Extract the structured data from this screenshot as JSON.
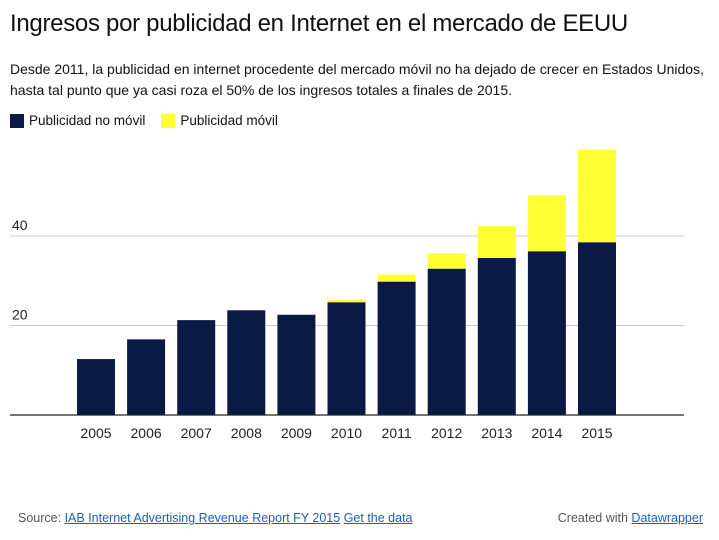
{
  "title": "Ingresos por publicidad en Internet en el mercado de EEUU",
  "subtitle": "Desde 2011, la publicidad en internet procedente del mercado móvil no ha dejado de crecer en Estados Unidos, hasta tal punto que ya casi roza el 50% de los ingresos totales a finales de 2015.",
  "colors": {
    "non_mobile": "#0b1a45",
    "mobile": "#ffff33",
    "grid": "#cccccc",
    "axis": "#222222"
  },
  "chart_data": {
    "type": "bar",
    "stacked": true,
    "categories": [
      "2005",
      "2006",
      "2007",
      "2008",
      "2009",
      "2010",
      "2011",
      "2012",
      "2013",
      "2014",
      "2015"
    ],
    "series": [
      {
        "name": "Publicidad no móvil",
        "values": [
          12.5,
          16.9,
          21.2,
          23.4,
          22.4,
          25.2,
          29.8,
          32.7,
          35.1,
          36.6,
          38.6
        ]
      },
      {
        "name": "Publicidad móvil",
        "values": [
          0,
          0,
          0,
          0,
          0,
          0.6,
          1.6,
          3.4,
          7.1,
          12.5,
          20.7
        ]
      }
    ],
    "yticks": [
      20,
      40
    ],
    "ylim": [
      0,
      60
    ],
    "grid": true,
    "legend": "top-left"
  },
  "footer": {
    "source_label": "Source:",
    "source_link": "IAB Internet Advertising Revenue Report FY 2015",
    "get_data": "Get the data",
    "created_label": "Created with",
    "created_link": "Datawrapper"
  }
}
